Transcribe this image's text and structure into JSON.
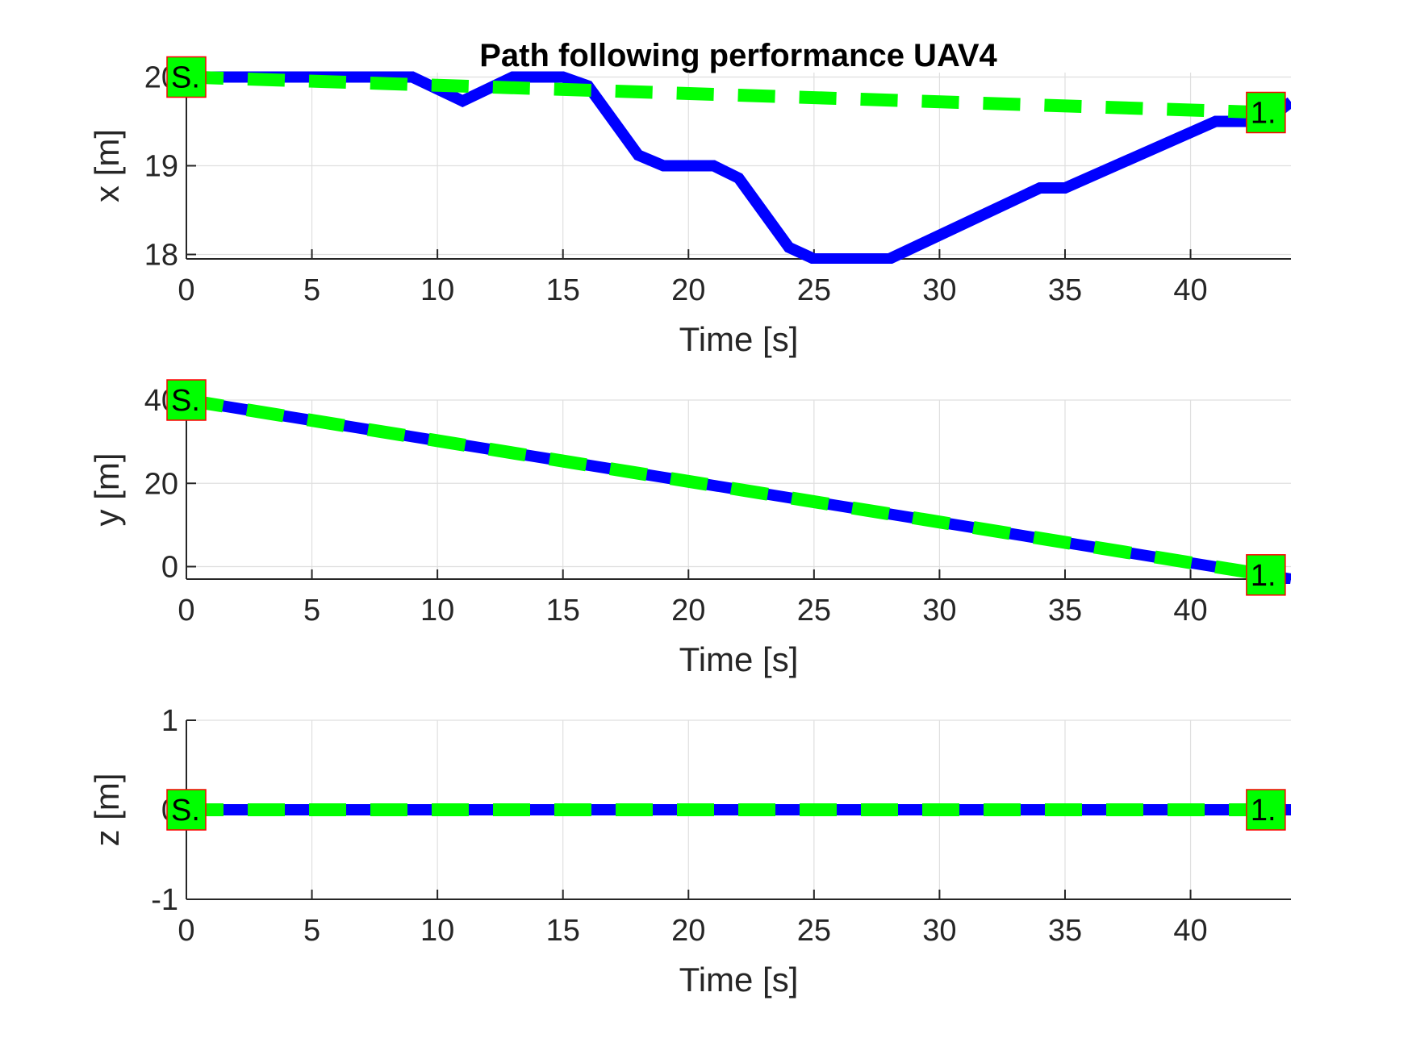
{
  "figure": {
    "title": "Path following performance  UAV4"
  },
  "colors": {
    "actual": "#0000ff",
    "reference": "#00ff00",
    "grid": "#dfdfdf",
    "axis": "#262626",
    "marker_fill": "#00ff00",
    "marker_edge": "#ff0000"
  },
  "chart_data": [
    {
      "type": "line",
      "title": "Path following performance  UAV4",
      "xlabel": "Time [s]",
      "ylabel": "x [m]",
      "xlim": [
        0,
        44
      ],
      "ylim": [
        17.95,
        20.05
      ],
      "xticks": [
        0,
        5,
        10,
        15,
        20,
        25,
        30,
        35,
        40
      ],
      "xtick_labels": [
        "0",
        "5",
        "10",
        "15",
        "20",
        "25",
        "30",
        "35",
        "40"
      ],
      "yticks": [
        18,
        19,
        20
      ],
      "ytick_labels": [
        "18",
        "19",
        "20"
      ],
      "grid": true,
      "series": [
        {
          "style": "solid",
          "color": "#0000ff",
          "x": [
            0,
            9,
            11,
            13,
            15,
            16,
            18,
            19,
            21,
            22,
            24,
            25,
            28,
            34,
            35,
            41,
            43,
            44
          ],
          "y": [
            20,
            20,
            19.73,
            20,
            20,
            19.9,
            19.12,
            19,
            19,
            18.86,
            18.08,
            17.95,
            17.95,
            18.75,
            18.75,
            19.5,
            19.5,
            19.72
          ]
        },
        {
          "style": "dashed",
          "color": "#00ff00",
          "x": [
            0,
            43
          ],
          "y": [
            20,
            19.6
          ]
        }
      ],
      "markers": [
        {
          "label": "S.",
          "x": 0,
          "y": 20
        },
        {
          "label": "1.",
          "x": 43,
          "y": 19.6
        }
      ]
    },
    {
      "type": "line",
      "xlabel": "Time [s]",
      "ylabel": "y [m]",
      "xlim": [
        0,
        44
      ],
      "ylim": [
        -3,
        40
      ],
      "xticks": [
        0,
        5,
        10,
        15,
        20,
        25,
        30,
        35,
        40
      ],
      "xtick_labels": [
        "0",
        "5",
        "10",
        "15",
        "20",
        "25",
        "30",
        "35",
        "40"
      ],
      "yticks": [
        0,
        20,
        40
      ],
      "ytick_labels": [
        "0",
        "20",
        "40"
      ],
      "grid": true,
      "series": [
        {
          "style": "solid",
          "color": "#0000ff",
          "x": [
            0,
            44
          ],
          "y": [
            40,
            -3
          ]
        },
        {
          "style": "dashed",
          "color": "#00ff00",
          "x": [
            0,
            43
          ],
          "y": [
            40,
            -2
          ]
        }
      ],
      "markers": [
        {
          "label": "S.",
          "x": 0,
          "y": 40
        },
        {
          "label": "1.",
          "x": 43,
          "y": -2
        }
      ]
    },
    {
      "type": "line",
      "xlabel": "Time [s]",
      "ylabel": "z [m]",
      "xlim": [
        0,
        44
      ],
      "ylim": [
        -1,
        1
      ],
      "xticks": [
        0,
        5,
        10,
        15,
        20,
        25,
        30,
        35,
        40
      ],
      "xtick_labels": [
        "0",
        "5",
        "10",
        "15",
        "20",
        "25",
        "30",
        "35",
        "40"
      ],
      "yticks": [
        -1,
        0,
        1
      ],
      "ytick_labels": [
        "-1",
        "0",
        "1"
      ],
      "grid": true,
      "series": [
        {
          "style": "solid",
          "color": "#0000ff",
          "x": [
            0,
            44
          ],
          "y": [
            0,
            0
          ]
        },
        {
          "style": "dashed",
          "color": "#00ff00",
          "x": [
            0,
            43
          ],
          "y": [
            0,
            0
          ]
        }
      ],
      "markers": [
        {
          "label": "S.",
          "x": 0,
          "y": 0
        },
        {
          "label": "1.",
          "x": 43,
          "y": 0
        }
      ]
    }
  ]
}
